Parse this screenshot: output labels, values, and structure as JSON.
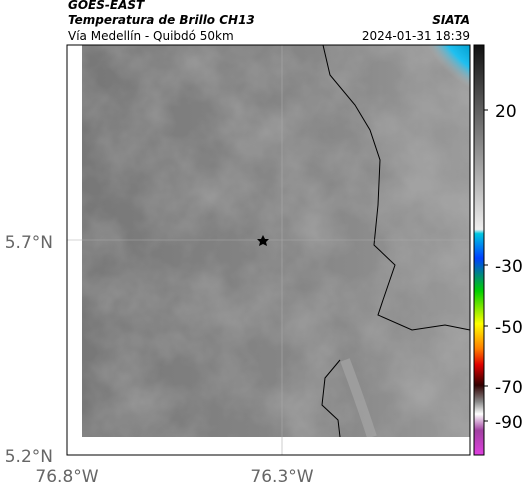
{
  "header": {
    "source": "GOES-EAST",
    "title": "Temperatura de Brillo CH13",
    "brand": "SIATA",
    "subtitle": "Vía Medellín - Quibdó 50km",
    "datetime": "2024-01-31 18:39"
  },
  "axes": {
    "lat_labels": [
      "5.7°N",
      "5.2°N"
    ],
    "lon_labels": [
      "76.8°W",
      "76.3°W"
    ]
  },
  "colorbar": {
    "labels": [
      "20",
      "-30",
      "-50",
      "-70",
      "-90"
    ]
  }
}
